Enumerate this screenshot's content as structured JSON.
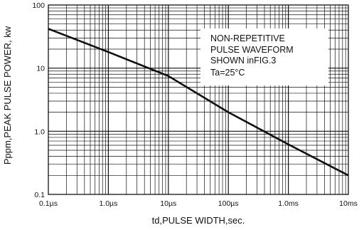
{
  "chart_data": {
    "type": "line",
    "title": "",
    "xlabel": "td,PULSE WIDTH,sec.",
    "ylabel": "Pppm,PEAK PULSE POWER, kw",
    "x_scale": "log",
    "y_scale": "log",
    "xlim": [
      "0.1µs",
      "10ms"
    ],
    "ylim": [
      0.1,
      100
    ],
    "grid": true,
    "x_ticks": [
      "0.1µs",
      "1.0µs",
      "10µs",
      "100µs",
      "1.0ms",
      "10ms"
    ],
    "y_ticks": [
      "0.1",
      "1.0",
      "10",
      "100"
    ],
    "series": [
      {
        "x": [
          "0.1µs",
          "1.0µs",
          "10µs",
          "100µs",
          "1.0ms",
          "10ms"
        ],
        "y": [
          42,
          18,
          7.5,
          2.0,
          0.62,
          0.2
        ]
      }
    ],
    "annotation": {
      "lines": [
        "NON-REPETITIVE",
        "PULSE WAVEFORM",
        "SHOWN inFIG.3"
      ],
      "temp_prefix": "Ta=25",
      "temp_unit": "°C"
    },
    "line_color": "#111111",
    "grid_color": "#111111"
  }
}
